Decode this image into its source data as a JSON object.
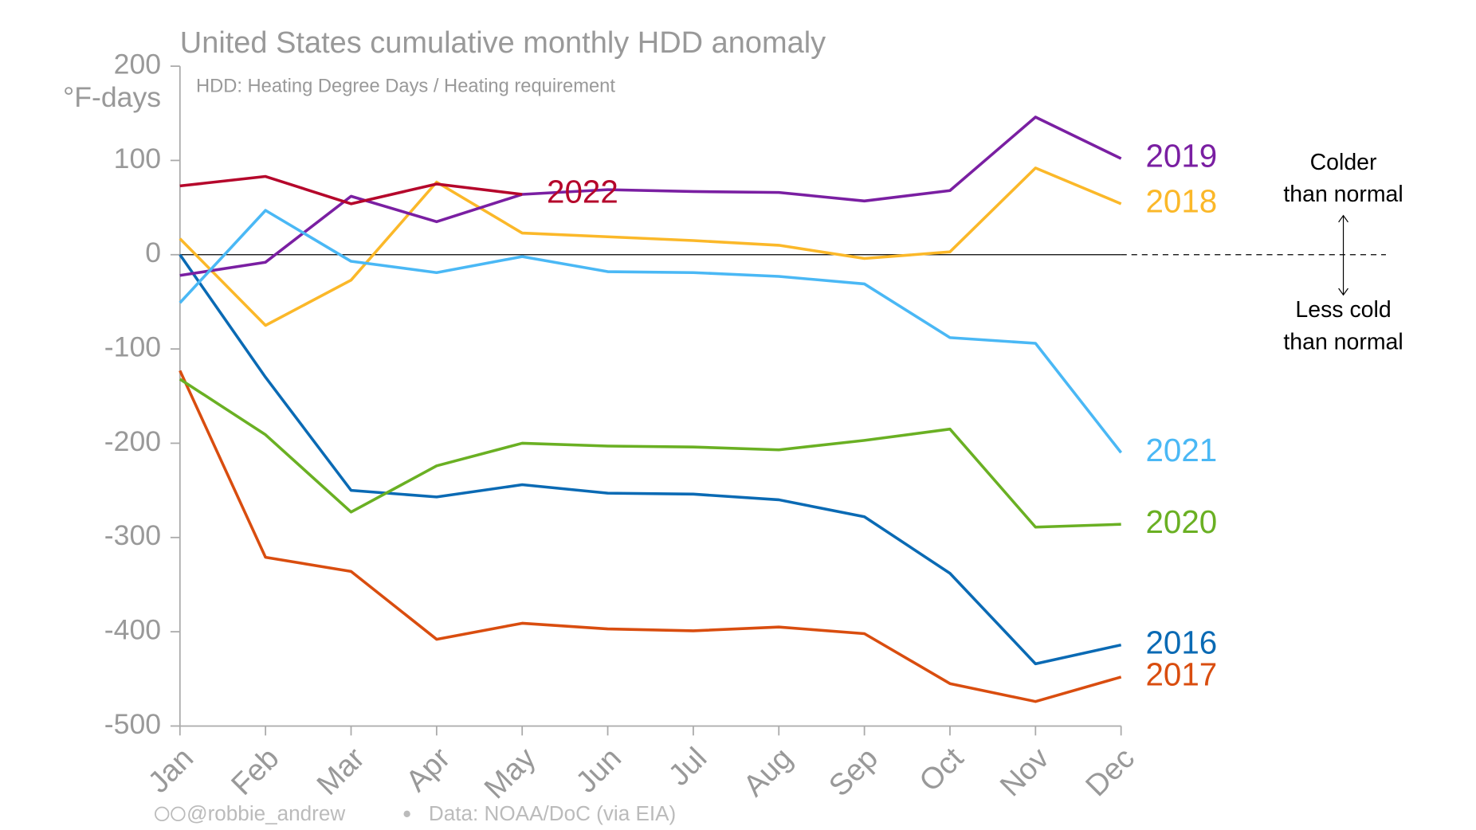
{
  "chart_data": {
    "type": "line",
    "title": "United States cumulative monthly HDD anomaly",
    "subtitle": "HDD: Heating Degree Days / Heating requirement",
    "y_label": "°F-days",
    "categories": [
      "Jan",
      "Feb",
      "Mar",
      "Apr",
      "May",
      "Jun",
      "Jul",
      "Aug",
      "Sep",
      "Oct",
      "Nov",
      "Dec"
    ],
    "series": [
      {
        "name": "2016",
        "color": "#0a6ab4",
        "values": [
          0,
          -130,
          -250,
          -257,
          -244,
          -253,
          -254,
          -260,
          -278,
          -338,
          -434,
          -414
        ]
      },
      {
        "name": "2017",
        "color": "#d94d0f",
        "values": [
          -123,
          -321,
          -336,
          -408,
          -391,
          -397,
          -399,
          -395,
          -402,
          -455,
          -474,
          -448
        ]
      },
      {
        "name": "2018",
        "color": "#fbb829",
        "values": [
          17,
          -75,
          -27,
          77,
          23,
          19,
          15,
          10,
          -4,
          3,
          92,
          54
        ]
      },
      {
        "name": "2019",
        "color": "#7a1fa2",
        "values": [
          -22,
          -8,
          62,
          35,
          64,
          69,
          67,
          66,
          57,
          68,
          146,
          102
        ]
      },
      {
        "name": "2020",
        "color": "#6ab023",
        "values": [
          -132,
          -191,
          -273,
          -224,
          -200,
          -203,
          -204,
          -207,
          -197,
          -185,
          -289,
          -286
        ]
      },
      {
        "name": "2021",
        "color": "#4ab8f5",
        "values": [
          -51,
          47,
          -7,
          -19,
          -2,
          -18,
          -19,
          -23,
          -31,
          -88,
          -94,
          -210
        ]
      },
      {
        "name": "2022",
        "color": "#b5062b",
        "values": [
          73,
          83,
          54,
          75,
          64,
          null,
          null,
          null,
          null,
          null,
          null,
          null
        ]
      }
    ],
    "ylim": [
      -500,
      200
    ],
    "yticks": [
      -500,
      -400,
      -300,
      -200,
      -100,
      0,
      100,
      200
    ],
    "annotations": [
      "Colder",
      "than normal",
      "Less cold",
      "than normal"
    ],
    "credit": "@robbie_andrew",
    "source": "Data: NOAA/DoC (via EIA)"
  }
}
